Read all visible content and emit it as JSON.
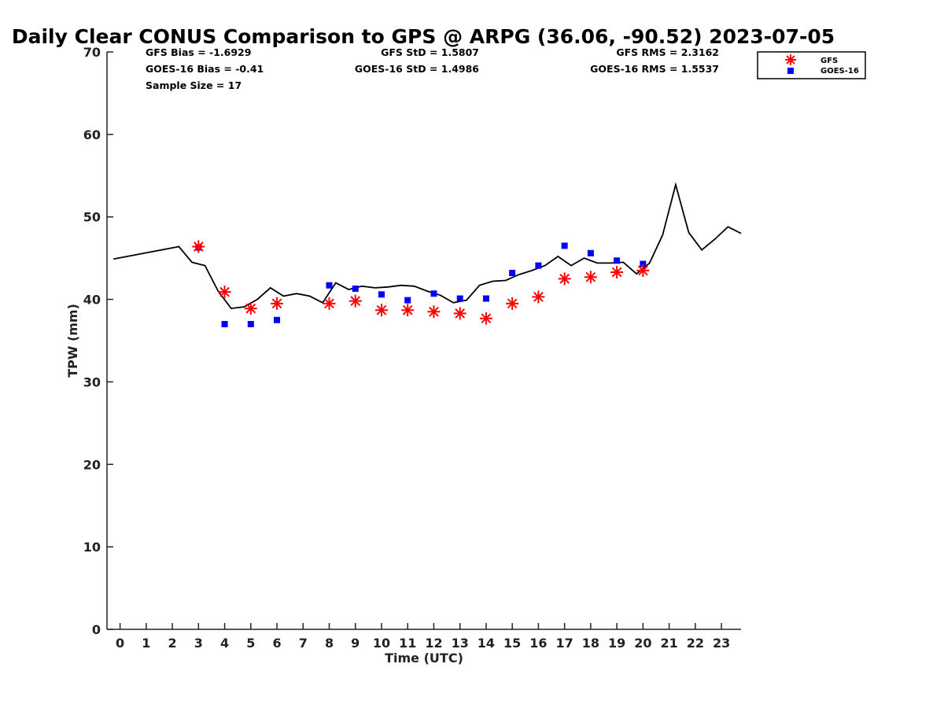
{
  "chart_data": {
    "type": "scatter",
    "title": "Daily Clear CONUS Comparison to GPS @ ARPG (36.06, -90.52) 2023-07-05",
    "xlabel": "Time (UTC)",
    "ylabel": "TPW (mm)",
    "xlim": [
      -0.5,
      23.75
    ],
    "ylim": [
      0,
      70
    ],
    "xticks": [
      0,
      1,
      2,
      3,
      4,
      5,
      6,
      7,
      8,
      9,
      10,
      11,
      12,
      13,
      14,
      15,
      16,
      17,
      18,
      19,
      20,
      21,
      22,
      23
    ],
    "yticks": [
      0,
      10,
      20,
      30,
      40,
      50,
      60,
      70
    ],
    "grid": false,
    "legend_position": "top-right",
    "stats": {
      "gfs_bias": "GFS Bias = -1.6929",
      "goes_bias": "GOES-16 Bias = -0.41",
      "sample_size": "Sample Size = 17",
      "gfs_std": "GFS StD = 1.5807",
      "goes_std": "GOES-16 StD = 1.4986",
      "gfs_rms": "GFS RMS = 2.3162",
      "goes_rms": "GOES-16 RMS = 1.5537"
    },
    "series": [
      {
        "name": "GFS",
        "marker": "asterisk",
        "color": "#ff0000",
        "points": [
          [
            3,
            46.4
          ],
          [
            4,
            40.9
          ],
          [
            5,
            38.9
          ],
          [
            6,
            39.5
          ],
          [
            8,
            39.5
          ],
          [
            9,
            39.8
          ],
          [
            10,
            38.7
          ],
          [
            11,
            38.7
          ],
          [
            12,
            38.5
          ],
          [
            13,
            38.3
          ],
          [
            14,
            37.7
          ],
          [
            15,
            39.5
          ],
          [
            16,
            40.3
          ],
          [
            17,
            42.5
          ],
          [
            18,
            42.7
          ],
          [
            19,
            43.3
          ],
          [
            20,
            43.5
          ]
        ]
      },
      {
        "name": "GOES-16",
        "marker": "square",
        "color": "#0000ff",
        "points": [
          [
            3,
            46.3
          ],
          [
            4,
            37.0
          ],
          [
            5,
            37.0
          ],
          [
            6,
            37.5
          ],
          [
            8,
            41.7
          ],
          [
            9,
            41.3
          ],
          [
            10,
            40.6
          ],
          [
            11,
            39.9
          ],
          [
            12,
            40.7
          ],
          [
            13,
            40.1
          ],
          [
            14,
            40.1
          ],
          [
            15,
            43.2
          ],
          [
            16,
            44.1
          ],
          [
            17,
            46.5
          ],
          [
            18,
            45.6
          ],
          [
            19,
            44.7
          ],
          [
            20,
            44.3
          ]
        ]
      },
      {
        "marker": "line",
        "color": "#000000",
        "points": [
          [
            -0.25,
            44.9
          ],
          [
            2.25,
            46.4
          ],
          [
            2.75,
            44.5
          ],
          [
            3.25,
            44.1
          ],
          [
            3.75,
            41.0
          ],
          [
            4.25,
            38.9
          ],
          [
            4.75,
            39.1
          ],
          [
            5.25,
            40.0
          ],
          [
            5.75,
            41.4
          ],
          [
            6.25,
            40.4
          ],
          [
            6.75,
            40.7
          ],
          [
            7.25,
            40.4
          ],
          [
            7.75,
            39.6
          ],
          [
            8.25,
            42.0
          ],
          [
            8.75,
            41.2
          ],
          [
            9.25,
            41.6
          ],
          [
            9.75,
            41.4
          ],
          [
            10.25,
            41.5
          ],
          [
            10.75,
            41.7
          ],
          [
            11.25,
            41.6
          ],
          [
            11.75,
            41.0
          ],
          [
            12.25,
            40.5
          ],
          [
            12.75,
            39.6
          ],
          [
            13.25,
            39.9
          ],
          [
            13.75,
            41.7
          ],
          [
            14.25,
            42.2
          ],
          [
            14.75,
            42.3
          ],
          [
            15.25,
            43.0
          ],
          [
            15.75,
            43.5
          ],
          [
            16.25,
            44.1
          ],
          [
            16.75,
            45.2
          ],
          [
            17.25,
            44.1
          ],
          [
            17.75,
            45.0
          ],
          [
            18.25,
            44.4
          ],
          [
            18.75,
            44.4
          ],
          [
            19.25,
            44.5
          ],
          [
            19.75,
            43.1
          ],
          [
            20.25,
            44.4
          ],
          [
            20.75,
            47.8
          ],
          [
            21.25,
            53.9
          ],
          [
            21.75,
            48.1
          ],
          [
            22.25,
            46.0
          ],
          [
            22.75,
            47.3
          ],
          [
            23.25,
            48.8
          ],
          [
            23.75,
            48.0
          ]
        ]
      }
    ]
  }
}
